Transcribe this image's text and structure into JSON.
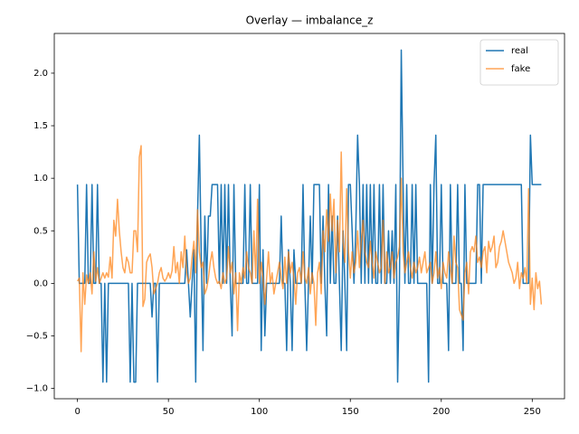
{
  "chart_data": {
    "type": "line",
    "title": "Overlay — imbalance_z",
    "x": [
      0,
      1,
      2,
      3,
      4,
      5,
      6,
      7,
      8,
      9,
      10,
      11,
      12,
      13,
      14,
      15,
      16,
      17,
      18,
      19,
      20,
      21,
      22,
      23,
      24,
      25,
      26,
      27,
      28,
      29,
      30,
      31,
      32,
      33,
      34,
      35,
      36,
      37,
      38,
      39,
      40,
      41,
      42,
      43,
      44,
      45,
      46,
      47,
      48,
      49,
      50,
      51,
      52,
      53,
      54,
      55,
      56,
      57,
      58,
      59,
      60,
      61,
      62,
      63,
      64,
      65,
      66,
      67,
      68,
      69,
      70,
      71,
      72,
      73,
      74,
      75,
      76,
      77,
      78,
      79,
      80,
      81,
      82,
      83,
      84,
      85,
      86,
      87,
      88,
      89,
      90,
      91,
      92,
      93,
      94,
      95,
      96,
      97,
      98,
      99,
      100,
      101,
      102,
      103,
      104,
      105,
      106,
      107,
      108,
      109,
      110,
      111,
      112,
      113,
      114,
      115,
      116,
      117,
      118,
      119,
      120,
      121,
      122,
      123,
      124,
      125,
      126,
      127,
      128,
      129,
      130,
      131,
      132,
      133,
      134,
      135,
      136,
      137,
      138,
      139,
      140,
      141,
      142,
      143,
      144,
      145,
      146,
      147,
      148,
      149,
      150,
      151,
      152,
      153,
      154,
      155,
      156,
      157,
      158,
      159,
      160,
      161,
      162,
      163,
      164,
      165,
      166,
      167,
      168,
      169,
      170,
      171,
      172,
      173,
      174,
      175,
      176,
      177,
      178,
      179,
      180,
      181,
      182,
      183,
      184,
      185,
      186,
      187,
      188,
      189,
      190,
      191,
      192,
      193,
      194,
      195,
      196,
      197,
      198,
      199,
      200,
      201,
      202,
      203,
      204,
      205,
      206,
      207,
      208,
      209,
      210,
      211,
      212,
      213,
      214,
      215,
      216,
      217,
      218,
      219,
      220,
      221,
      222,
      223,
      224,
      225,
      226,
      227,
      228,
      229,
      230,
      231,
      232,
      233,
      234,
      235,
      236,
      237,
      238,
      239,
      240,
      241,
      242,
      243,
      244,
      245,
      246,
      247,
      248,
      249,
      250,
      251,
      252,
      253,
      254,
      255
    ],
    "series": [
      {
        "name": "real",
        "color": "#1f77b4",
        "opacity": 1,
        "values": [
          0.94,
          0,
          0,
          0,
          0,
          0.94,
          0,
          0,
          0.94,
          0,
          0,
          0.94,
          0,
          0,
          -0.94,
          0,
          -0.94,
          0,
          0,
          0,
          0,
          0,
          0,
          0,
          0,
          0,
          0,
          0,
          0,
          -0.94,
          0,
          -0.94,
          -0.94,
          0,
          0,
          0,
          0,
          0,
          0,
          0,
          0,
          -0.32,
          0,
          0,
          -0.94,
          0,
          0,
          0,
          0,
          0,
          0,
          0,
          0,
          0,
          0,
          0,
          0,
          0,
          0,
          0,
          0.32,
          0,
          -0.32,
          0,
          0.32,
          -0.94,
          0.64,
          1.41,
          0.32,
          -0.64,
          0.64,
          0,
          0.64,
          0.64,
          0.94,
          0.94,
          0.94,
          0.94,
          0,
          0.94,
          0,
          0.94,
          0,
          0.94,
          0,
          -0.5,
          0.94,
          0,
          0,
          0,
          0,
          0,
          0.94,
          0,
          0,
          0.94,
          0,
          0,
          0,
          0,
          0.94,
          -0.64,
          0.32,
          -0.5,
          0,
          0,
          0,
          0,
          0,
          0,
          0,
          0,
          0.64,
          0,
          0,
          -0.64,
          0.32,
          0,
          -0.64,
          0.32,
          0,
          0,
          0,
          0,
          0.94,
          0,
          -0.64,
          0,
          0.64,
          0,
          0.94,
          0.94,
          0.94,
          0.94,
          0,
          0.64,
          0,
          -0.5,
          0.94,
          0,
          0.64,
          0,
          0,
          0.64,
          0,
          -0.64,
          0.5,
          0,
          -0.64,
          0.94,
          0.94,
          0.5,
          0,
          0.5,
          1.41,
          0.94,
          0,
          0.94,
          0,
          0.94,
          0,
          0.94,
          0,
          0.94,
          0,
          0,
          0.94,
          0,
          0.94,
          0,
          0,
          0.5,
          0,
          0.5,
          0,
          0.94,
          -0.94,
          0,
          2.22,
          0.94,
          0,
          0.94,
          0,
          0,
          0.94,
          0,
          0.94,
          0,
          0,
          0,
          0,
          0,
          0,
          -0.94,
          0.94,
          0,
          0.94,
          1.41,
          0,
          0,
          0.94,
          0,
          0,
          0,
          -0.64,
          0.94,
          0,
          0,
          0,
          0.94,
          0,
          0,
          -0.64,
          0.94,
          0,
          0,
          0,
          0,
          0,
          0,
          0.94,
          0.94,
          0,
          0.94,
          0.94,
          0.94,
          0.94,
          0.94,
          0.94,
          0.94,
          0.94,
          0.94,
          0.94,
          0.94,
          0.94,
          0.94,
          0.94,
          0.94,
          0.94,
          0.94,
          0.94,
          0.94,
          0.94,
          0.94,
          0.94,
          0,
          0,
          0,
          0,
          1.41,
          0.94,
          0.94,
          0.94,
          0.94,
          0.94,
          0.94
        ]
      },
      {
        "name": "fake",
        "color": "#ff7f0e",
        "opacity": 0.7,
        "values": [
          0.02,
          0.05,
          -0.65,
          0.1,
          -0.2,
          0.08,
          0.0,
          0.1,
          -0.1,
          0.3,
          0.02,
          0.15,
          0.0,
          0.05,
          0.1,
          0.05,
          0.1,
          0.06,
          0.25,
          0.05,
          0.6,
          0.45,
          0.8,
          0.5,
          0.3,
          0.15,
          0.1,
          0.25,
          0.2,
          0.1,
          0.1,
          0.5,
          0.5,
          0.3,
          1.2,
          1.31,
          -0.22,
          -0.15,
          0.2,
          0.25,
          0.28,
          0.15,
          -0.1,
          -0.05,
          0.0,
          0.1,
          0.15,
          0.05,
          0.02,
          0.05,
          0.1,
          0.05,
          0.12,
          0.35,
          0.1,
          0.2,
          0.0,
          0.3,
          0.15,
          0.45,
          0.1,
          0.0,
          0.05,
          0.25,
          0.4,
          0.1,
          0.7,
          0.3,
          0.15,
          0.2,
          -0.1,
          -0.05,
          0.05,
          0.2,
          0.3,
          0.15,
          0.05,
          0.0,
          0.02,
          -0.05,
          0.1,
          0.0,
          0.05,
          0.35,
          0.1,
          0.2,
          -0.1,
          0.1,
          -0.45,
          0.1,
          0.0,
          0.15,
          0.05,
          0.3,
          0.15,
          0.1,
          0.0,
          0.5,
          0.05,
          0.8,
          0.0,
          0.2,
          0.05,
          -0.2,
          0.05,
          0.3,
          0.0,
          0.1,
          -0.1,
          0.0,
          0.1,
          0.2,
          0.05,
          -0.05,
          0.25,
          0.0,
          0.3,
          0.1,
          0.2,
          0.05,
          -0.2,
          0.1,
          0.15,
          0.0,
          0.3,
          0.05,
          0.0,
          0.15,
          -0.1,
          0.1,
          0.0,
          -0.4,
          0.1,
          0.2,
          -0.1,
          0.5,
          0.3,
          0.7,
          0.4,
          0.85,
          0.5,
          0.8,
          0.1,
          0.6,
          0.3,
          1.25,
          0.4,
          0.2,
          0.9,
          0.3,
          0.05,
          0.3,
          0.1,
          0.2,
          0.5,
          0.15,
          0.4,
          0.6,
          0.3,
          0.2,
          0.15,
          0.4,
          0.2,
          0.05,
          0.3,
          0.2,
          0.1,
          0.15,
          0.6,
          0.0,
          0.3,
          0.1,
          0.15,
          0.3,
          0.05,
          0.2,
          0.25,
          0.35,
          1.0,
          0.3,
          0.1,
          0.2,
          0.3,
          0.15,
          0.05,
          0.2,
          0.1,
          0.15,
          0.25,
          0.1,
          0.2,
          0.3,
          0.1,
          0.15,
          0.2,
          0.0,
          0.1,
          0.3,
          0.05,
          0.15,
          -0.05,
          0.2,
          0.1,
          0.05,
          0.3,
          0.15,
          0.0,
          0.45,
          0.2,
          0.15,
          -0.25,
          -0.3,
          -0.35,
          0.1,
          0.2,
          -0.1,
          0.3,
          0.35,
          0.3,
          0.45,
          0.2,
          0.25,
          0.15,
          0.3,
          0.35,
          0.1,
          0.4,
          0.3,
          0.35,
          0.45,
          0.15,
          0.2,
          0.35,
          0.4,
          0.5,
          0.4,
          0.3,
          0.2,
          0.15,
          0.1,
          0.0,
          0.05,
          0.2,
          -0.05,
          0.1,
          0.05,
          0.15,
          0.0,
          0.9,
          -0.2,
          0.05,
          -0.25,
          0.1,
          -0.05,
          0.02,
          -0.2
        ]
      }
    ],
    "xlim": [
      -12.75,
      267.75
    ],
    "xticks": [
      0,
      50,
      100,
      150,
      200,
      250
    ],
    "ylim": [
      -1.098,
      2.378
    ],
    "yticks": [
      {
        "value": -1,
        "label": "−1.0"
      },
      {
        "value": -0.5,
        "label": "−0.5"
      },
      {
        "value": 0,
        "label": "0.0"
      },
      {
        "value": 0.5,
        "label": "0.5"
      },
      {
        "value": 1,
        "label": "1.0"
      },
      {
        "value": 1.5,
        "label": "1.5"
      },
      {
        "value": 2,
        "label": "2.0"
      }
    ],
    "legend": "upper right"
  }
}
